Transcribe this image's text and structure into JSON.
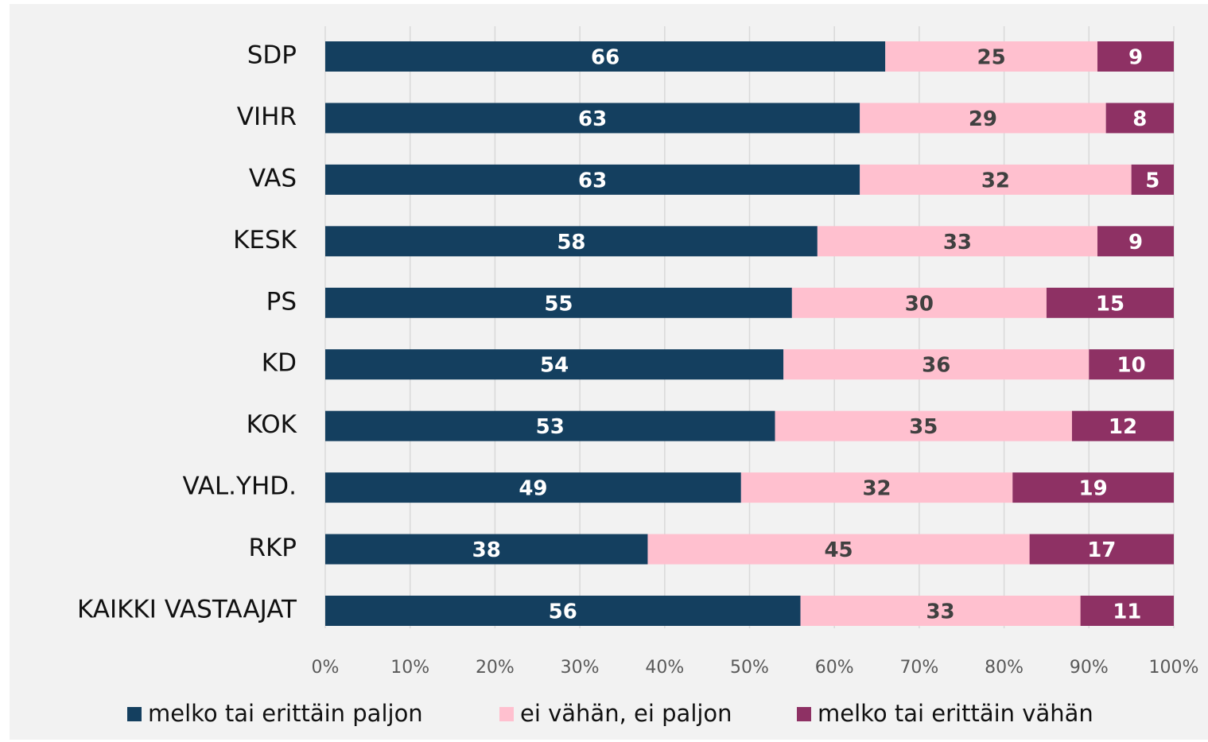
{
  "chart_data": {
    "type": "stacked-bar-horizontal",
    "categories": [
      "SDP",
      "VIHR",
      "VAS",
      "KESK",
      "PS",
      "KD",
      "KOK",
      "VAL.YHD.",
      "RKP",
      "KAIKKI VASTAAJAT"
    ],
    "series": [
      {
        "name": "melko tai erittäin paljon",
        "color": "#143f5f",
        "values": [
          66,
          63,
          63,
          58,
          55,
          54,
          53,
          49,
          38,
          56
        ]
      },
      {
        "name": "ei vähän, ei paljon",
        "color": "#ffc0cf",
        "values": [
          25,
          29,
          32,
          33,
          30,
          36,
          35,
          32,
          45,
          33
        ]
      },
      {
        "name": "melko tai erittäin vähän",
        "color": "#8e3164",
        "values": [
          9,
          8,
          5,
          9,
          15,
          10,
          12,
          19,
          17,
          11
        ]
      }
    ],
    "xlim": [
      0,
      100
    ],
    "xticks": [
      {
        "value": 0,
        "label": "0%"
      },
      {
        "value": 10,
        "label": "10%"
      },
      {
        "value": 20,
        "label": "20%"
      },
      {
        "value": 30,
        "label": "30%"
      },
      {
        "value": 40,
        "label": "40%"
      },
      {
        "value": 50,
        "label": "50%"
      },
      {
        "value": 60,
        "label": "60%"
      },
      {
        "value": 70,
        "label": "70%"
      },
      {
        "value": 80,
        "label": "80%"
      },
      {
        "value": 90,
        "label": "90%"
      },
      {
        "value": 100,
        "label": "100%"
      }
    ],
    "grid": true,
    "legend": "bottom"
  }
}
